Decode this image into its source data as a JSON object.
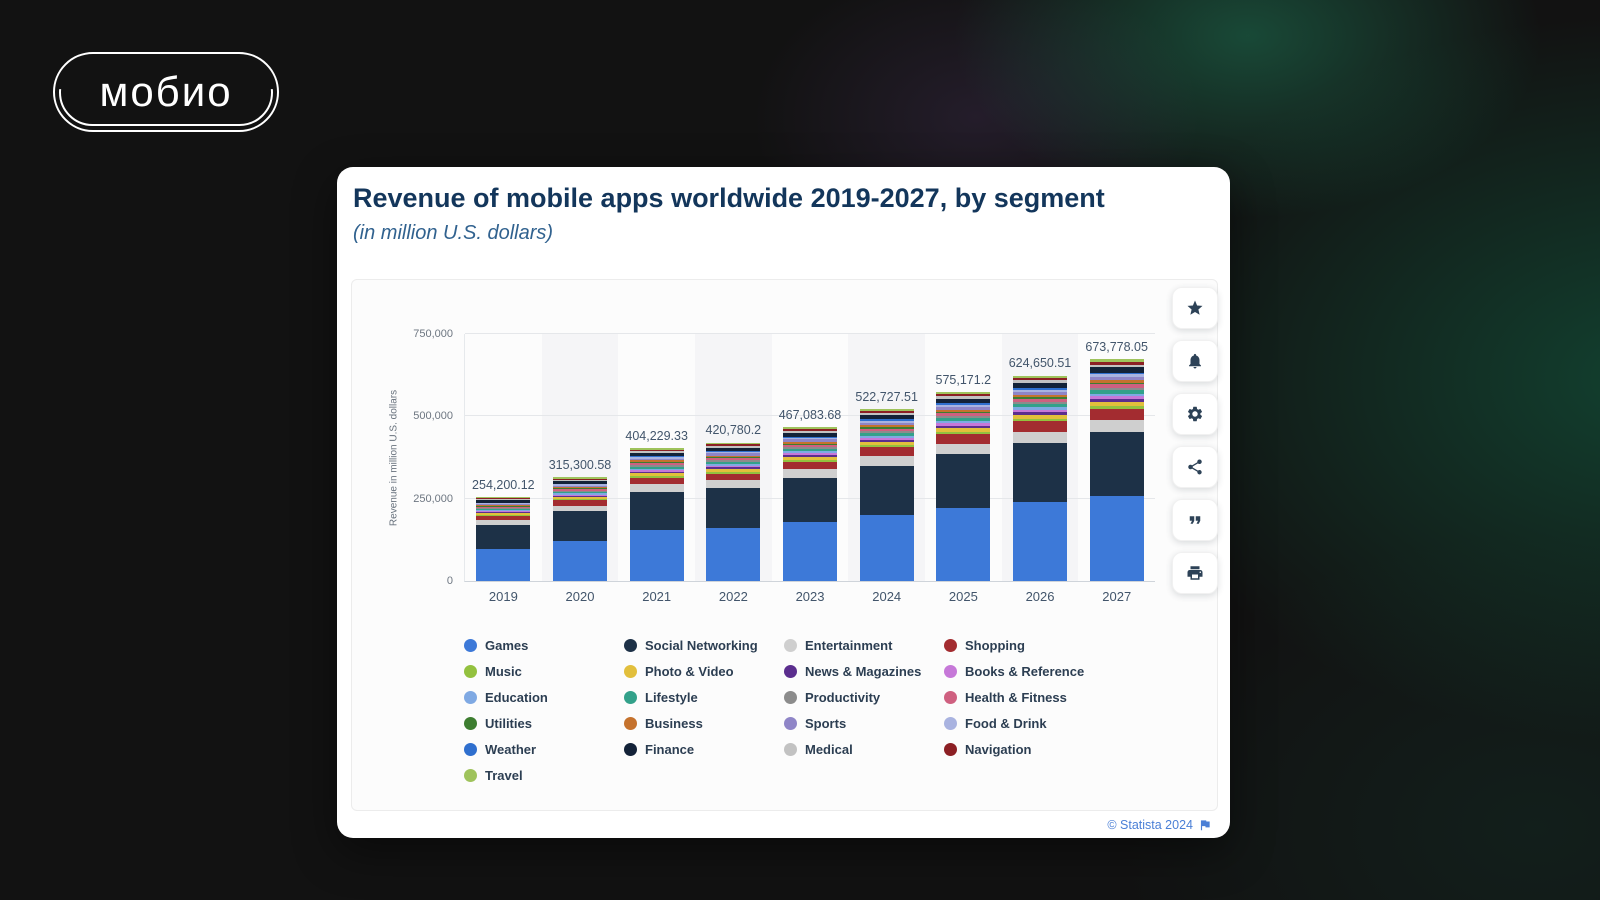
{
  "branding": {
    "logo_text": "мобио"
  },
  "header": {
    "title": "Revenue of mobile apps worldwide 2019-2027, by segment",
    "subtitle": "(in million U.S. dollars)"
  },
  "footer": {
    "copyright": "© Statista 2024"
  },
  "toolbar": {
    "icons": [
      "star-icon",
      "bell-icon",
      "gear-icon",
      "share-icon",
      "quote-icon",
      "print-icon"
    ]
  },
  "chart_data": {
    "type": "bar",
    "stacked": true,
    "title": "Revenue of mobile apps worldwide 2019-2027, by segment",
    "subtitle": "(in million U.S. dollars)",
    "ylabel": "Revenue in million U.S. dollars",
    "xlabel": "",
    "ylim": [
      0,
      750000
    ],
    "grid": true,
    "legend_position": "bottom",
    "y_ticks": [
      {
        "value": 0,
        "label": "0"
      },
      {
        "value": 250000,
        "label": "250,000"
      },
      {
        "value": 500000,
        "label": "500,000"
      },
      {
        "value": 750000,
        "label": "750,000"
      }
    ],
    "categories": [
      "2019",
      "2020",
      "2021",
      "2022",
      "2023",
      "2024",
      "2025",
      "2026",
      "2027"
    ],
    "totals": [
      254200.12,
      315300.58,
      404229.33,
      420780.2,
      467083.68,
      522727.51,
      575171.2,
      624650.51,
      673778.05
    ],
    "total_labels": [
      "254,200.12",
      "315,300.58",
      "404,229.33",
      "420,780.2",
      "467,083.68",
      "522,727.51",
      "575,171.2",
      "624,650.51",
      "673,778.05"
    ],
    "series": [
      {
        "name": "Games",
        "color": "#3d79d8",
        "values": [
          97867,
          121391,
          155628,
          162000,
          179827,
          201250,
          221441,
          240491,
          259404
        ]
      },
      {
        "name": "Social Networking",
        "color": "#1d3147",
        "values": [
          72701,
          90176,
          115610,
          120343,
          133586,
          149500,
          164499,
          178650,
          192700
        ]
      },
      {
        "name": "Entertainment",
        "color": "#cfcfcf",
        "values": [
          13981,
          17342,
          22233,
          23143,
          25690,
          28750,
          31634,
          34356,
          37058
        ]
      },
      {
        "name": "Shopping",
        "color": "#a32c30",
        "values": [
          12710,
          15765,
          20211,
          21039,
          23354,
          26136,
          28759,
          31233,
          33689
        ]
      },
      {
        "name": "Music",
        "color": "#93c13f",
        "values": [
          3050,
          3784,
          4851,
          5049,
          5605,
          6273,
          6902,
          7496,
          8085
        ]
      },
      {
        "name": "Photo & Video",
        "color": "#e2bf3c",
        "values": [
          5084,
          6306,
          8085,
          8416,
          9342,
          10455,
          11503,
          12493,
          13476
        ]
      },
      {
        "name": "News & Magazines",
        "color": "#5b2e8e",
        "values": [
          3050,
          3784,
          4851,
          5049,
          5605,
          6273,
          6902,
          7496,
          8085
        ]
      },
      {
        "name": "Books & Reference",
        "color": "#c678d8",
        "values": [
          3050,
          3784,
          4851,
          5049,
          5605,
          6273,
          6902,
          7496,
          8085
        ]
      },
      {
        "name": "Education",
        "color": "#7fa9e3",
        "values": [
          3050,
          3784,
          4851,
          5049,
          5605,
          6273,
          6902,
          7496,
          8085
        ]
      },
      {
        "name": "Lifestyle",
        "color": "#33a18a",
        "values": [
          3813,
          4730,
          6063,
          6312,
          7006,
          7841,
          8628,
          9370,
          10107
        ]
      },
      {
        "name": "Productivity",
        "color": "#8c8c8c",
        "values": [
          3050,
          3784,
          4851,
          5049,
          5605,
          6273,
          6902,
          7496,
          8085
        ]
      },
      {
        "name": "Health & Fitness",
        "color": "#cf6080",
        "values": [
          3813,
          4730,
          6063,
          6312,
          7006,
          7841,
          8628,
          9370,
          10107
        ]
      },
      {
        "name": "Utilities",
        "color": "#3d7d30",
        "values": [
          2034,
          2522,
          3234,
          3366,
          3737,
          4182,
          4601,
          4997,
          5390
        ]
      },
      {
        "name": "Business",
        "color": "#c5722d",
        "values": [
          3050,
          3784,
          4851,
          5049,
          5605,
          6273,
          6902,
          7496,
          8085
        ]
      },
      {
        "name": "Sports",
        "color": "#8f85c7",
        "values": [
          3813,
          4730,
          6063,
          6312,
          7006,
          7841,
          8628,
          9370,
          10107
        ]
      },
      {
        "name": "Food & Drink",
        "color": "#a9b3e0",
        "values": [
          2542,
          3153,
          4042,
          4208,
          4671,
          5227,
          5752,
          6247,
          6738
        ]
      },
      {
        "name": "Weather",
        "color": "#2f6fce",
        "values": [
          2034,
          2522,
          3234,
          3366,
          3737,
          4182,
          4601,
          4997,
          5390
        ]
      },
      {
        "name": "Finance",
        "color": "#132238",
        "values": [
          6355,
          7883,
          10106,
          10520,
          11677,
          13068,
          14379,
          15616,
          16844
        ]
      },
      {
        "name": "Medical",
        "color": "#c2c2c2",
        "values": [
          3050,
          3784,
          4851,
          5049,
          5605,
          6273,
          6902,
          7496,
          8085
        ]
      },
      {
        "name": "Navigation",
        "color": "#8c1f24",
        "values": [
          3050,
          3784,
          4851,
          5049,
          5605,
          6273,
          6902,
          7496,
          8085
        ]
      },
      {
        "name": "Travel",
        "color": "#9fc35c",
        "values": [
          3050,
          3784,
          4851,
          5049,
          5605,
          6273,
          6902,
          7496,
          8085
        ]
      }
    ],
    "legend_columns": [
      [
        "Games",
        "Music",
        "Education",
        "Utilities",
        "Weather",
        "Travel"
      ],
      [
        "Social Networking",
        "Photo & Video",
        "Lifestyle",
        "Business",
        "Finance"
      ],
      [
        "Entertainment",
        "News & Magazines",
        "Productivity",
        "Sports",
        "Medical"
      ],
      [
        "Shopping",
        "Books & Reference",
        "Health & Fitness",
        "Food & Drink",
        "Navigation"
      ]
    ]
  }
}
